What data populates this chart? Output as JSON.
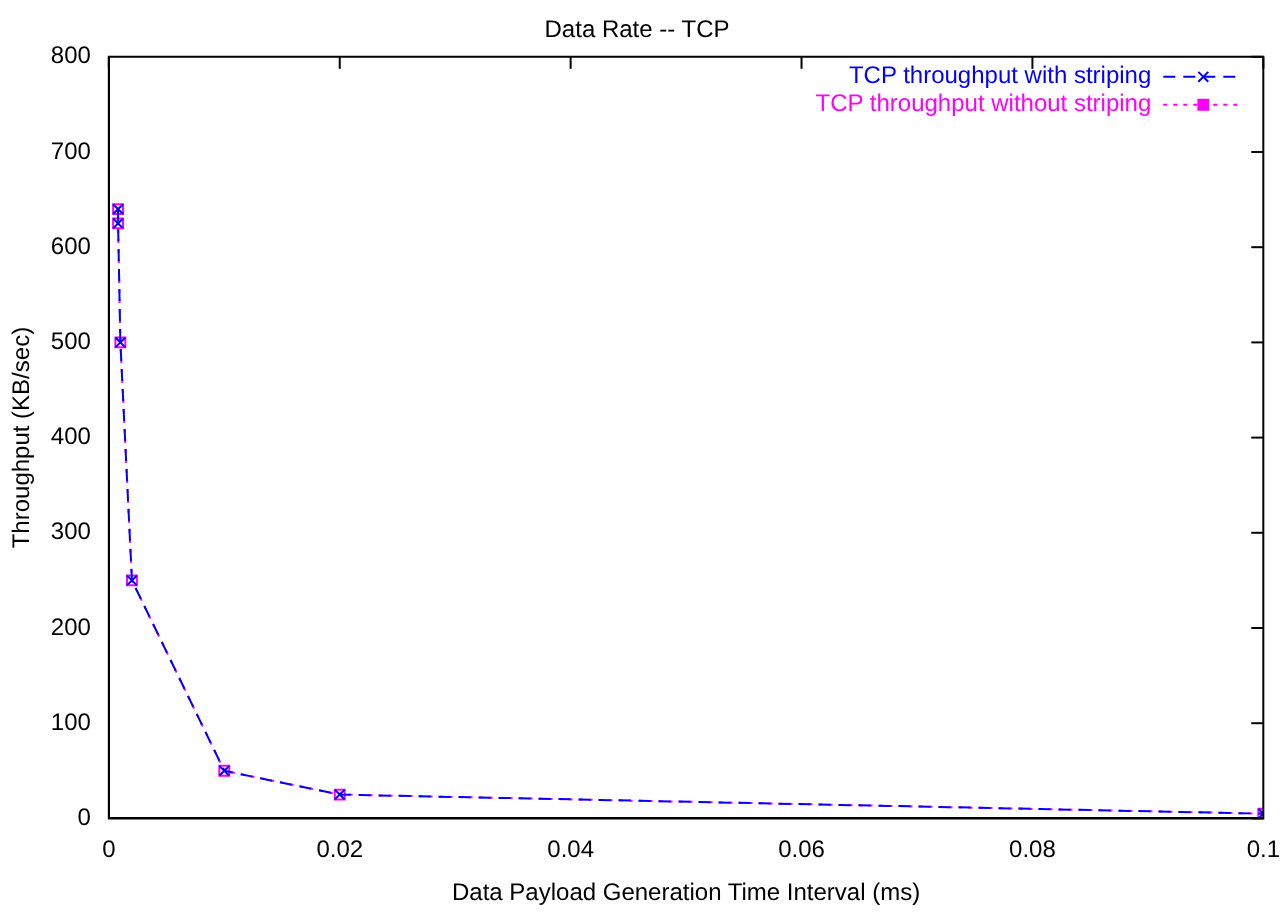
{
  "chart_data": {
    "type": "line",
    "title": "Data Rate -- TCP",
    "xlabel": "Data Payload Generation Time Interval (ms)",
    "ylabel": "Throughput (KB/sec)",
    "x": [
      0.0008,
      0.0008,
      0.001,
      0.002,
      0.01,
      0.02,
      0.1
    ],
    "series": [
      {
        "name": "TCP throughput with striping",
        "color": "#0000ff",
        "marker": "cross",
        "line_style": "dashed",
        "values": [
          640,
          625,
          500,
          250,
          50,
          25,
          5
        ]
      },
      {
        "name": "TCP throughput without striping",
        "color": "#ff00ff",
        "marker": "square",
        "line_style": "dotted",
        "values": [
          640,
          625,
          500,
          250,
          50,
          25,
          5
        ]
      }
    ],
    "xlim": [
      0,
      0.1
    ],
    "xticks": [
      0,
      0.02,
      0.04,
      0.06,
      0.08,
      0.1
    ],
    "ylim": [
      0,
      800
    ],
    "yticks": [
      0,
      100,
      200,
      300,
      400,
      500,
      600,
      700,
      800
    ],
    "grid": false,
    "legend": "top right"
  }
}
